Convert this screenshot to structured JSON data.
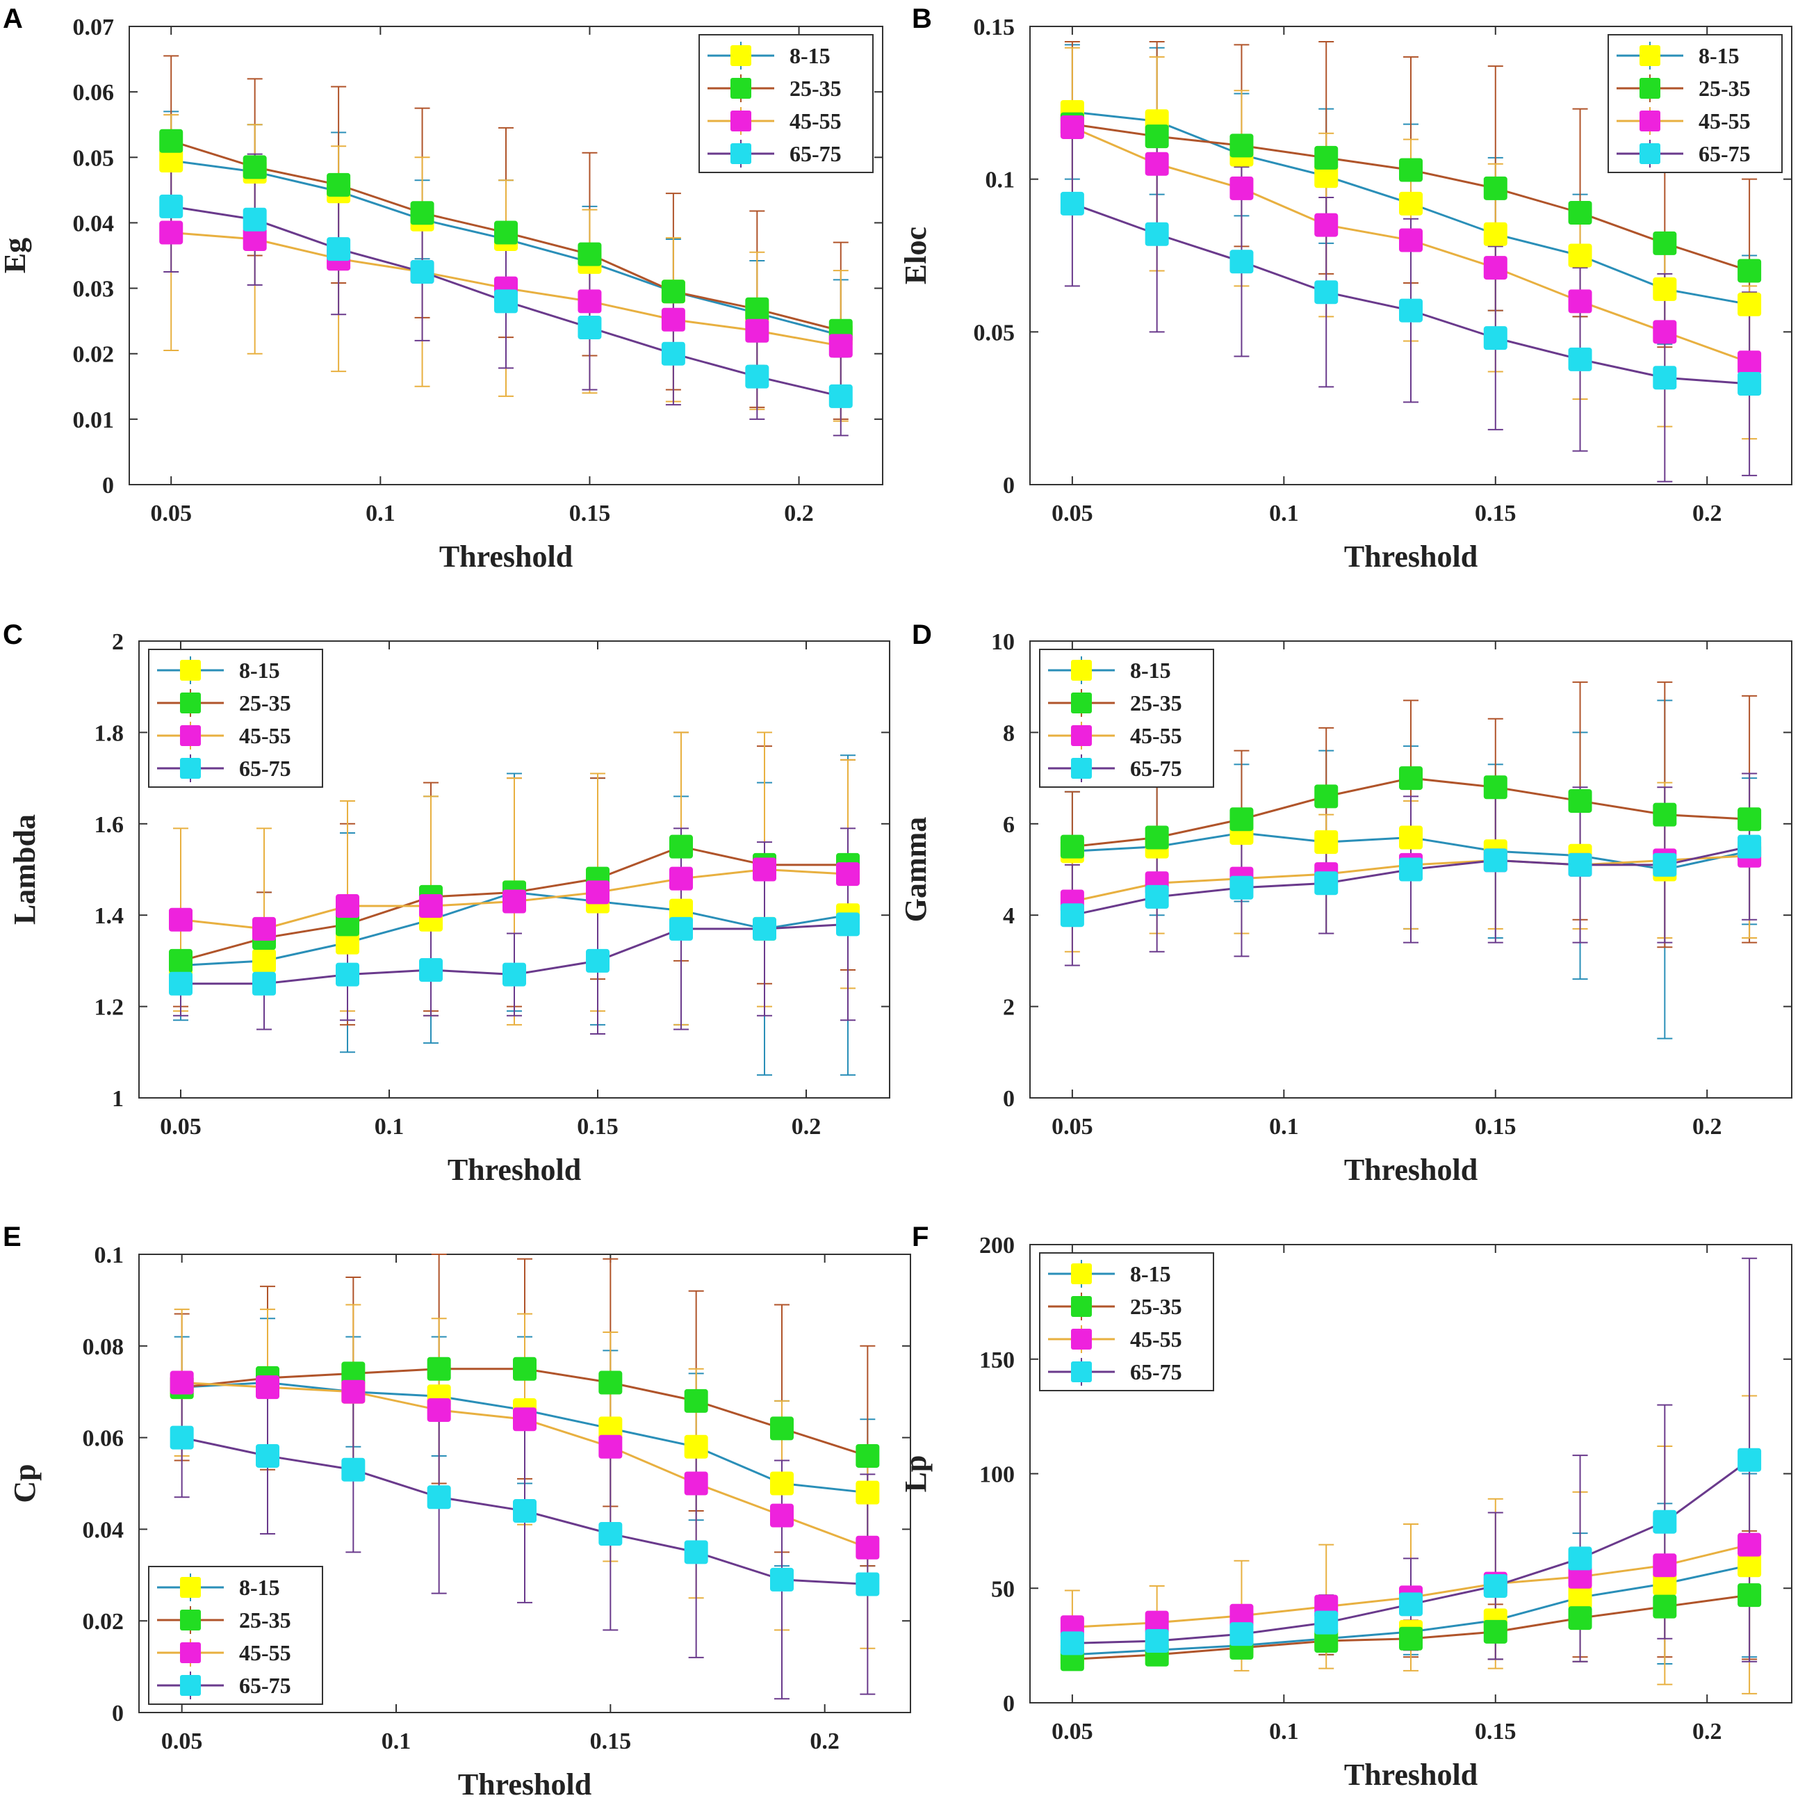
{
  "colors": {
    "groups": {
      "8-15": {
        "marker": "#ffff00",
        "line": "#2a8fb8"
      },
      "25-35": {
        "marker": "#22dd22",
        "line": "#b0542a"
      },
      "45-55": {
        "marker": "#ee22dd",
        "line": "#e8b040"
      },
      "65-75": {
        "marker": "#22ddee",
        "line": "#6a3a8c"
      }
    },
    "axis": "#333333"
  },
  "chart_data": [
    {
      "panel": "A",
      "type": "line",
      "title": "",
      "xlabel": "Threshold",
      "ylabel": "Eg",
      "xlim": [
        0.04,
        0.22
      ],
      "ylim": [
        0,
        0.07
      ],
      "xticks": [
        "0.05",
        "0.1",
        "0.15",
        "0.2"
      ],
      "yticks": [
        "0",
        "0.01",
        "0.02",
        "0.03",
        "0.04",
        "0.05",
        "0.06",
        "0.07"
      ],
      "legend": "top-right",
      "x": [
        0.05,
        0.07,
        0.09,
        0.11,
        0.13,
        0.15,
        0.17,
        0.19,
        0.21
      ],
      "series": [
        {
          "name": "8-15",
          "values": [
            0.0495,
            0.0478,
            0.0448,
            0.0405,
            0.0375,
            0.034,
            0.0295,
            0.0262,
            0.0228
          ],
          "errors": [
            0.0075,
            0.0072,
            0.009,
            0.006,
            0.009,
            0.0085,
            0.008,
            0.008,
            0.0085
          ]
        },
        {
          "name": "25-35",
          "values": [
            0.0525,
            0.0485,
            0.0458,
            0.0415,
            0.0385,
            0.0352,
            0.0295,
            0.0268,
            0.0235
          ],
          "errors": [
            0.013,
            0.0135,
            0.015,
            0.016,
            0.016,
            0.0155,
            0.015,
            0.015,
            0.0135
          ]
        },
        {
          "name": "45-55",
          "values": [
            0.0385,
            0.0375,
            0.0345,
            0.0325,
            0.03,
            0.028,
            0.0252,
            0.0235,
            0.0212
          ],
          "errors": [
            0.018,
            0.0175,
            0.0172,
            0.0175,
            0.0165,
            0.014,
            0.0125,
            0.012,
            0.0115
          ]
        },
        {
          "name": "65-75",
          "values": [
            0.0425,
            0.0405,
            0.036,
            0.0325,
            0.028,
            0.024,
            0.02,
            0.0165,
            0.0135
          ],
          "errors": [
            0.01,
            0.01,
            0.01,
            0.0105,
            0.0102,
            0.0095,
            0.0078,
            0.0065,
            0.006
          ]
        }
      ]
    },
    {
      "panel": "B",
      "type": "line",
      "title": "",
      "xlabel": "Threshold",
      "ylabel": "Eloc",
      "xlim": [
        0.04,
        0.22
      ],
      "ylim": [
        0,
        0.15
      ],
      "xticks": [
        "0.05",
        "0.1",
        "0.15",
        "0.2"
      ],
      "yticks": [
        "0",
        "0.05",
        "0.1",
        "0.15"
      ],
      "legend": "top-right",
      "x": [
        0.05,
        0.07,
        0.09,
        0.11,
        0.13,
        0.15,
        0.17,
        0.19,
        0.21
      ],
      "series": [
        {
          "name": "8-15",
          "values": [
            0.122,
            0.119,
            0.108,
            0.101,
            0.092,
            0.082,
            0.075,
            0.064,
            0.059
          ],
          "errors": [
            0.022,
            0.024,
            0.02,
            0.022,
            0.026,
            0.025,
            0.02,
            0.018,
            0.016
          ]
        },
        {
          "name": "25-35",
          "values": [
            0.118,
            0.114,
            0.111,
            0.107,
            0.103,
            0.097,
            0.089,
            0.079,
            0.07
          ],
          "errors": [
            0.027,
            0.031,
            0.033,
            0.038,
            0.037,
            0.04,
            0.034,
            0.034,
            0.03
          ]
        },
        {
          "name": "45-55",
          "values": [
            0.117,
            0.105,
            0.097,
            0.085,
            0.08,
            0.071,
            0.06,
            0.05,
            0.04
          ],
          "errors": [
            0.026,
            0.035,
            0.032,
            0.03,
            0.033,
            0.034,
            0.032,
            0.031,
            0.025
          ]
        },
        {
          "name": "65-75",
          "values": [
            0.092,
            0.082,
            0.073,
            0.063,
            0.057,
            0.048,
            0.041,
            0.035,
            0.033
          ],
          "errors": [
            0.027,
            0.032,
            0.031,
            0.031,
            0.03,
            0.03,
            0.03,
            0.034,
            0.03
          ]
        }
      ]
    },
    {
      "panel": "C",
      "type": "line",
      "title": "",
      "xlabel": "Threshold",
      "ylabel": "Lambda",
      "xlim": [
        0.04,
        0.22
      ],
      "ylim": [
        1,
        2
      ],
      "xticks": [
        "0.05",
        "0.1",
        "0.15",
        "0.2"
      ],
      "yticks": [
        "1",
        "1.2",
        "1.4",
        "1.6",
        "1.8",
        "2"
      ],
      "legend": "top-left",
      "x": [
        0.05,
        0.07,
        0.09,
        0.11,
        0.13,
        0.15,
        0.17,
        0.19,
        0.21
      ],
      "series": [
        {
          "name": "8-15",
          "values": [
            1.29,
            1.3,
            1.34,
            1.39,
            1.45,
            1.43,
            1.41,
            1.37,
            1.4
          ],
          "errors": [
            0.12,
            0.15,
            0.24,
            0.27,
            0.26,
            0.27,
            0.25,
            0.32,
            0.35
          ]
        },
        {
          "name": "25-35",
          "values": [
            1.3,
            1.35,
            1.38,
            1.44,
            1.45,
            1.48,
            1.55,
            1.51,
            1.51
          ],
          "errors": [
            0.1,
            0.1,
            0.22,
            0.25,
            0.25,
            0.22,
            0.25,
            0.26,
            0.23
          ]
        },
        {
          "name": "45-55",
          "values": [
            1.39,
            1.37,
            1.42,
            1.42,
            1.43,
            1.45,
            1.48,
            1.5,
            1.49
          ],
          "errors": [
            0.2,
            0.22,
            0.23,
            0.24,
            0.27,
            0.26,
            0.32,
            0.3,
            0.25
          ]
        },
        {
          "name": "65-75",
          "values": [
            1.25,
            1.25,
            1.27,
            1.28,
            1.27,
            1.3,
            1.37,
            1.37,
            1.38
          ],
          "errors": [
            0.07,
            0.1,
            0.1,
            0.1,
            0.09,
            0.16,
            0.22,
            0.19,
            0.21
          ]
        }
      ]
    },
    {
      "panel": "D",
      "type": "line",
      "title": "",
      "xlabel": "Threshold",
      "ylabel": "Gamma",
      "xlim": [
        0.04,
        0.22
      ],
      "ylim": [
        0,
        10
      ],
      "xticks": [
        "0.05",
        "0.1",
        "0.15",
        "0.2"
      ],
      "yticks": [
        "0",
        "2",
        "4",
        "6",
        "8",
        "10"
      ],
      "legend": "top-left",
      "x": [
        0.05,
        0.07,
        0.09,
        0.11,
        0.13,
        0.15,
        0.17,
        0.19,
        0.21
      ],
      "series": [
        {
          "name": "8-15",
          "values": [
            5.4,
            5.5,
            5.8,
            5.6,
            5.7,
            5.4,
            5.3,
            5.0,
            5.4
          ],
          "errors": [
            1.3,
            1.5,
            1.5,
            2.0,
            2.0,
            1.9,
            2.7,
            3.7,
            1.6
          ]
        },
        {
          "name": "25-35",
          "values": [
            5.5,
            5.7,
            6.1,
            6.6,
            7.0,
            6.8,
            6.5,
            6.2,
            6.1
          ],
          "errors": [
            1.2,
            1.4,
            1.5,
            1.5,
            1.7,
            1.5,
            2.6,
            2.9,
            2.7
          ]
        },
        {
          "name": "45-55",
          "values": [
            4.3,
            4.7,
            4.8,
            4.9,
            5.1,
            5.2,
            5.1,
            5.2,
            5.3
          ],
          "errors": [
            1.1,
            1.1,
            1.2,
            1.3,
            1.4,
            1.5,
            1.4,
            1.7,
            1.8
          ]
        },
        {
          "name": "65-75",
          "values": [
            4.0,
            4.4,
            4.6,
            4.7,
            5.0,
            5.2,
            5.1,
            5.1,
            5.5
          ],
          "errors": [
            1.1,
            1.2,
            1.5,
            1.1,
            1.6,
            1.8,
            1.7,
            1.7,
            1.6
          ]
        }
      ]
    },
    {
      "panel": "E",
      "type": "line",
      "title": "",
      "xlabel": "Threshold",
      "ylabel": "Cp",
      "xlim": [
        0.04,
        0.22
      ],
      "ylim": [
        0,
        0.1
      ],
      "xticks": [
        "0.05",
        "0.1",
        "0.15",
        "0.2"
      ],
      "yticks": [
        "0",
        "0.02",
        "0.04",
        "0.06",
        "0.08",
        "0.1"
      ],
      "legend": "bottom-left",
      "x": [
        0.05,
        0.07,
        0.09,
        0.11,
        0.13,
        0.15,
        0.17,
        0.19,
        0.21
      ],
      "series": [
        {
          "name": "8-15",
          "values": [
            0.071,
            0.072,
            0.07,
            0.069,
            0.066,
            0.062,
            0.058,
            0.05,
            0.048
          ],
          "errors": [
            0.011,
            0.014,
            0.012,
            0.013,
            0.016,
            0.017,
            0.016,
            0.018,
            0.016
          ]
        },
        {
          "name": "25-35",
          "values": [
            0.071,
            0.073,
            0.074,
            0.075,
            0.075,
            0.072,
            0.068,
            0.062,
            0.056
          ],
          "errors": [
            0.016,
            0.02,
            0.021,
            0.025,
            0.024,
            0.027,
            0.024,
            0.027,
            0.024
          ]
        },
        {
          "name": "45-55",
          "values": [
            0.072,
            0.071,
            0.07,
            0.066,
            0.064,
            0.058,
            0.05,
            0.043,
            0.036
          ],
          "errors": [
            0.016,
            0.017,
            0.019,
            0.02,
            0.023,
            0.025,
            0.025,
            0.025,
            0.022
          ]
        },
        {
          "name": "65-75",
          "values": [
            0.06,
            0.056,
            0.053,
            0.047,
            0.044,
            0.039,
            0.035,
            0.029,
            0.028
          ],
          "errors": [
            0.013,
            0.017,
            0.018,
            0.021,
            0.02,
            0.021,
            0.023,
            0.026,
            0.024
          ]
        }
      ]
    },
    {
      "panel": "F",
      "type": "line",
      "title": "",
      "xlabel": "Threshold",
      "ylabel": "Lp",
      "xlim": [
        0.04,
        0.22
      ],
      "ylim": [
        0,
        200
      ],
      "xticks": [
        "0.05",
        "0.1",
        "0.15",
        "0.2"
      ],
      "yticks": [
        "0",
        "50",
        "100",
        "150",
        "200"
      ],
      "legend": "top-left",
      "x": [
        0.05,
        0.07,
        0.09,
        0.11,
        0.13,
        0.15,
        0.17,
        0.19,
        0.21
      ],
      "series": [
        {
          "name": "8-15",
          "values": [
            21,
            23,
            25,
            28,
            31,
            36,
            46,
            52,
            60
          ],
          "errors": [
            3,
            4,
            5,
            7,
            10,
            17,
            28,
            35,
            40
          ]
        },
        {
          "name": "25-35",
          "values": [
            19,
            21,
            24,
            27,
            28,
            31,
            37,
            42,
            47
          ],
          "errors": [
            3,
            3,
            4,
            6,
            8,
            12,
            17,
            22,
            28
          ]
        },
        {
          "name": "45-55",
          "values": [
            33,
            35,
            38,
            42,
            46,
            52,
            55,
            60,
            69
          ],
          "errors": [
            16,
            16,
            24,
            27,
            32,
            37,
            37,
            52,
            65
          ]
        },
        {
          "name": "65-75",
          "values": [
            26,
            27,
            30,
            35,
            43,
            51,
            63,
            79,
            106
          ],
          "errors": [
            5,
            5,
            8,
            12,
            20,
            32,
            45,
            51,
            88
          ]
        }
      ]
    }
  ]
}
